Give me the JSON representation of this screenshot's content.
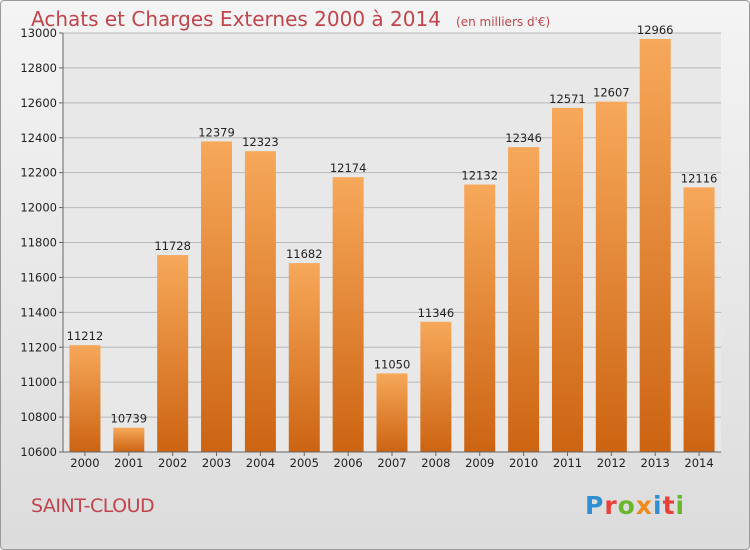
{
  "title": {
    "main": "Achats et Charges Externes 2000 à 2014",
    "unit": "(en milliers d'€)"
  },
  "place": "SAINT-CLOUD",
  "logo": {
    "text": "Proxiti",
    "letters": [
      {
        "ch": "P",
        "color": "#2f8fd2"
      },
      {
        "ch": "r",
        "color": "#e8403a"
      },
      {
        "ch": "o",
        "color": "#6cb52d"
      },
      {
        "ch": "x",
        "color": "#f08a1e"
      },
      {
        "ch": "i",
        "color": "#2f8fd2"
      },
      {
        "ch": "t",
        "color": "#e8403a"
      },
      {
        "ch": "i",
        "color": "#6cb52d"
      }
    ]
  },
  "colors": {
    "accent": "#c0454c",
    "bar_top": "#f7a85a",
    "bar_bottom": "#cc6412",
    "grid": "#b8b8b8",
    "plot_bg": "#e8e8e8"
  },
  "chart_data": {
    "type": "bar",
    "categories": [
      "2000",
      "2001",
      "2002",
      "2003",
      "2004",
      "2005",
      "2006",
      "2007",
      "2008",
      "2009",
      "2010",
      "2011",
      "2012",
      "2013",
      "2014"
    ],
    "values": [
      11212,
      10739,
      11728,
      12379,
      12323,
      11682,
      12174,
      11050,
      11346,
      12132,
      12346,
      12571,
      12607,
      12966,
      12116
    ],
    "ylim": [
      10600,
      13000
    ],
    "yticks": [
      10600,
      10800,
      11000,
      11200,
      11400,
      11600,
      11800,
      12000,
      12200,
      12400,
      12600,
      12800,
      13000
    ],
    "grid": true,
    "legend": "none"
  }
}
